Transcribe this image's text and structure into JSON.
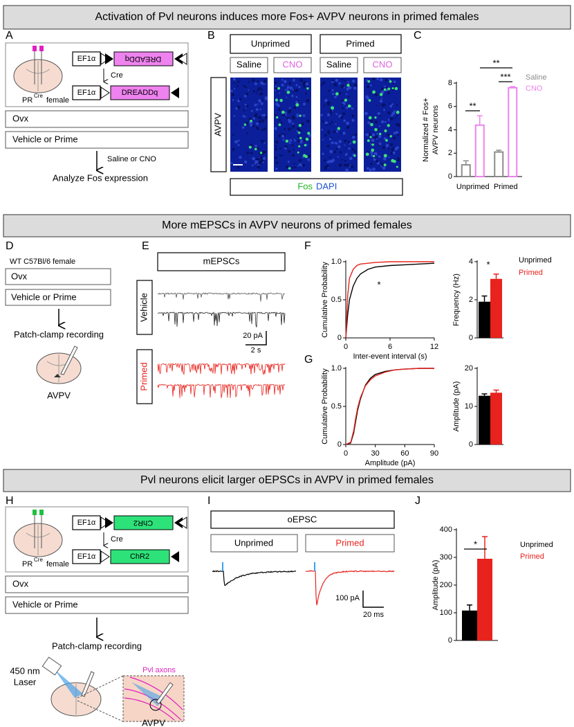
{
  "sections": [
    "Activation of Pvl neurons induces more Fos+ AVPV neurons in primed females",
    "More mEPSCs in AVPV neurons of primed females",
    "Pvl neurons elicit larger oEPSCs in AVPV in primed females"
  ],
  "panel_labels": [
    "A",
    "B",
    "C",
    "D",
    "E",
    "F",
    "G",
    "H",
    "I",
    "J"
  ],
  "panel_a": {
    "promoter": "EF1α",
    "construct_flipped": "DREADDq",
    "cre": "Cre",
    "construct": "DREADDq",
    "mouse_label": "PR",
    "mouse_sup": "Cre",
    "mouse_suffix": "female",
    "steps": [
      "Ovx",
      "Vehicle or Prime"
    ],
    "treatment": "Saline or CNO",
    "outcome": "Analyze Fos expression"
  },
  "panel_b": {
    "groups": [
      "Unprimed",
      "Primed"
    ],
    "conditions": [
      "Saline",
      "CNO",
      "Saline",
      "CNO"
    ],
    "region": "AVPV",
    "stain_1": "Fos",
    "stain_2": "DAPI"
  },
  "panel_d": {
    "mouse": "WT C57Bl/6 female",
    "steps": [
      "Ovx",
      "Vehicle or Prime"
    ],
    "recording": "Patch-clamp recording",
    "region": "AVPV"
  },
  "panel_e": {
    "title": "mEPSCs",
    "groups": [
      "Vehicle",
      "Primed"
    ],
    "scale_y": "20 pA",
    "scale_x": "2 s"
  },
  "panel_h": {
    "promoter": "EF1α",
    "construct_flipped": "ChR2",
    "cre": "Cre",
    "construct": "ChR2",
    "mouse_label": "PR",
    "mouse_sup": "Cre",
    "mouse_suffix": "female",
    "steps": [
      "Ovx",
      "Vehicle or Prime"
    ],
    "recording": "Patch-clamp recording",
    "laser": [
      "450 nm",
      "Laser"
    ],
    "axons": "Pvl axons",
    "region": "AVPV"
  },
  "panel_i": {
    "title": "oEPSC",
    "groups": [
      "Unprimed",
      "Primed"
    ],
    "scale_y": "100 pA",
    "scale_x": "20 ms"
  },
  "chart_data": [
    {
      "type": "bar",
      "ylabel": [
        "Normalized # Fos+",
        "AVPV neurons"
      ],
      "categories": [
        "Unprimed",
        "Primed"
      ],
      "series": [
        {
          "name": "Saline",
          "color": "#8c8c8c",
          "values": [
            1.0,
            2.1
          ],
          "errors": [
            0.35,
            0.15
          ]
        },
        {
          "name": "CNO",
          "color": "#ee82ee",
          "values": [
            4.4,
            7.6
          ],
          "errors": [
            0.8,
            0.1
          ]
        }
      ],
      "ylim": [
        0,
        8
      ],
      "yticks": [
        0,
        2,
        4,
        6,
        8
      ],
      "bar_style": "outline",
      "legend": true,
      "significance": [
        "**",
        "**",
        "***"
      ]
    },
    {
      "type": "line",
      "xlabel": "Inter-event interval (s)",
      "ylabel": "Cumulative Probability",
      "x": [
        0,
        0.25,
        0.5,
        1,
        1.5,
        2,
        3,
        4,
        6,
        8,
        10,
        12
      ],
      "series": [
        {
          "name": "Unprimed",
          "color": "#000000",
          "values": [
            0,
            0.3,
            0.5,
            0.68,
            0.78,
            0.84,
            0.9,
            0.93,
            0.95,
            0.96,
            0.97,
            0.98
          ]
        },
        {
          "name": "Primed",
          "color": "#e8221c",
          "values": [
            0,
            0.55,
            0.78,
            0.9,
            0.95,
            0.97,
            0.98,
            0.99,
            1,
            1,
            1,
            1
          ]
        }
      ],
      "xlim": [
        0,
        12
      ],
      "xticks": [
        0,
        6,
        12
      ],
      "ylim": [
        0,
        1
      ],
      "yticks": [
        0,
        0.5,
        {
          "value": 1,
          "label": "1.0"
        }
      ],
      "annotation": "*"
    },
    {
      "type": "bar",
      "ylabel": "Frequency (Hz)",
      "series": [
        {
          "name": "Unprimed",
          "color": "#000000",
          "values": [
            1.9
          ],
          "errors": [
            0.3
          ]
        },
        {
          "name": "Primed",
          "color": "#e8221c",
          "values": [
            3.1
          ],
          "errors": [
            0.25
          ]
        }
      ],
      "ylim": [
        0,
        4
      ],
      "yticks": [
        0,
        2,
        4
      ],
      "legend": true,
      "annotation": "*"
    },
    {
      "type": "line",
      "xlabel": "Amplitude (pA)",
      "ylabel": "Cumulative Probability",
      "x": [
        0,
        5,
        8,
        10,
        12,
        15,
        20,
        25,
        30,
        40,
        50,
        60,
        75,
        90
      ],
      "series": [
        {
          "name": "Unprimed",
          "color": "#000000",
          "values": [
            0,
            0.02,
            0.15,
            0.3,
            0.45,
            0.6,
            0.78,
            0.87,
            0.92,
            0.96,
            0.98,
            0.99,
            1,
            1
          ]
        },
        {
          "name": "Primed",
          "color": "#e8221c",
          "values": [
            0,
            0.03,
            0.18,
            0.34,
            0.48,
            0.62,
            0.77,
            0.85,
            0.9,
            0.95,
            0.98,
            0.99,
            1,
            1
          ]
        }
      ],
      "xlim": [
        0,
        90
      ],
      "xticks": [
        0,
        30,
        60,
        90
      ],
      "ylim": [
        0,
        1
      ],
      "yticks": [
        0,
        0.5,
        {
          "value": 1,
          "label": "1.0"
        }
      ]
    },
    {
      "type": "bar",
      "ylabel": "Amplitude (pA)",
      "series": [
        {
          "name": "Unprimed",
          "color": "#000000",
          "values": [
            12.8
          ],
          "errors": [
            0.5
          ]
        },
        {
          "name": "Primed",
          "color": "#e8221c",
          "values": [
            13.6
          ],
          "errors": [
            0.7
          ]
        }
      ],
      "ylim": [
        0,
        20
      ],
      "yticks": [
        0,
        10,
        20
      ]
    },
    {
      "type": "bar",
      "ylabel": "Amplitude (pA)",
      "series": [
        {
          "name": "Unprimed",
          "color": "#000000",
          "values": [
            108
          ],
          "errors": [
            20
          ]
        },
        {
          "name": "Primed",
          "color": "#e8221c",
          "values": [
            295
          ],
          "errors": [
            80
          ]
        }
      ],
      "ylim": [
        0,
        400
      ],
      "yticks": [
        0,
        100,
        200,
        300,
        400
      ],
      "legend": true,
      "annotation": "*"
    }
  ]
}
